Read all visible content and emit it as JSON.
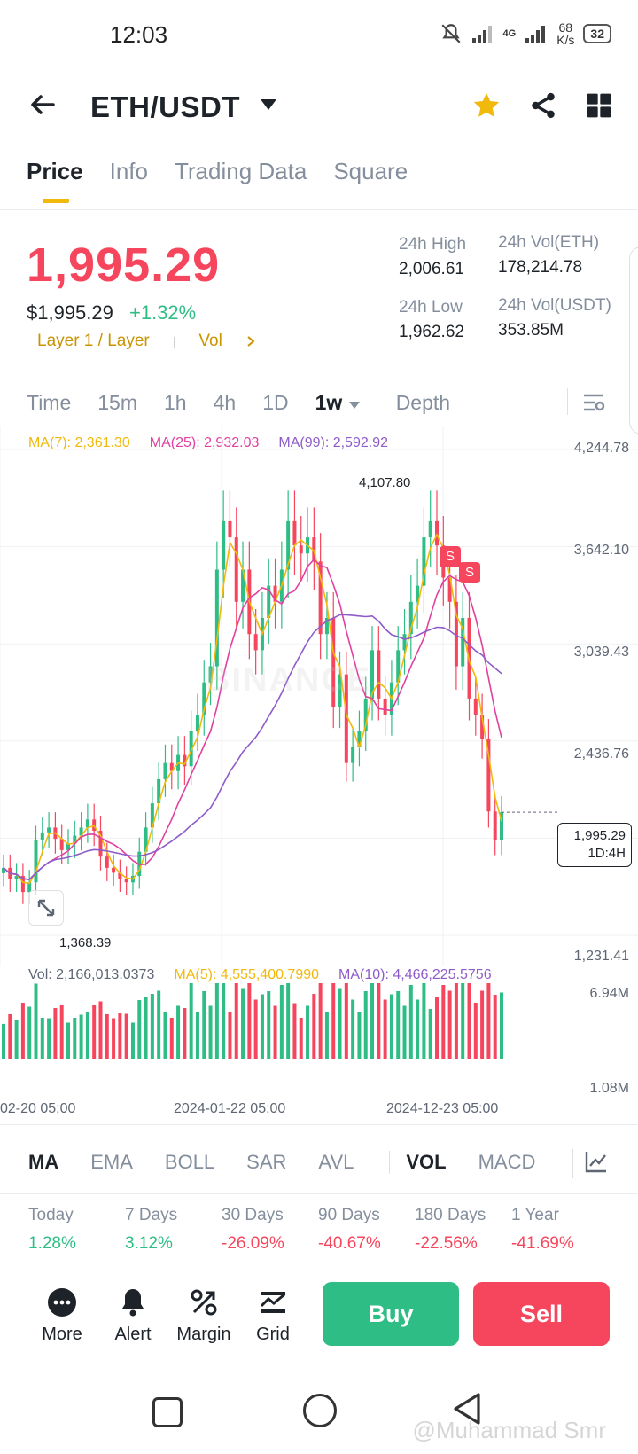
{
  "status": {
    "time": "12:03",
    "net_speed_value": "68",
    "net_speed_unit": "K/s",
    "network": "4G",
    "battery": "32"
  },
  "header": {
    "pair": "ETH/USDT"
  },
  "tabs": [
    "Price",
    "Info",
    "Trading Data",
    "Square"
  ],
  "price": {
    "last": "1,995.29",
    "usd": "$1,995.29",
    "change": "+1.32%",
    "tag": "Layer 1 / Layer",
    "vol_link": "Vol",
    "high_label": "24h High",
    "high": "2,006.61",
    "low_label": "24h Low",
    "low": "1,962.62",
    "vol_eth_label": "24h Vol(ETH)",
    "vol_eth": "178,214.78",
    "vol_usdt_label": "24h Vol(USDT)",
    "vol_usdt": "353.85M"
  },
  "timeframes": [
    "Time",
    "15m",
    "1h",
    "4h",
    "1D",
    "1w",
    "Depth"
  ],
  "chart": {
    "ma7": "MA(7): 2,361.30",
    "ma25": "MA(25): 2,932.03",
    "ma99": "MA(99): 2,592.92",
    "y_ticks": [
      "4,244.78",
      "3,642.10",
      "3,039.43",
      "2,436.76",
      "1,231.41"
    ],
    "high_marker": "4,107.80",
    "low_marker": "1,368.39",
    "current_price": "1,995.29",
    "countdown": "1D:4H",
    "sell_marker": "S",
    "watermark": "BINANCE",
    "vol_label": "Vol: 2,166,013.0373",
    "vol_ma5": "MA(5): 4,555,400.7990",
    "vol_ma10": "MA(10): 4,466,225.5756",
    "vol_ticks": [
      "6.94M",
      "1.08M"
    ],
    "dates": [
      "02-20 05:00",
      "2024-01-22 05:00",
      "2024-12-23 05:00"
    ],
    "colors": {
      "up": "#2ebd85",
      "down": "#f6465d",
      "ma7": "#f0b90b",
      "ma25": "#e040a0",
      "ma99": "#8e5cc8"
    }
  },
  "chart_data": {
    "type": "candlestick",
    "interval": "1w",
    "closes": [
      1650,
      1580,
      1600,
      1500,
      1560,
      1820,
      1870,
      1900,
      1830,
      1760,
      1800,
      1850,
      1900,
      1950,
      1880,
      1720,
      1650,
      1620,
      1580,
      1560,
      1600,
      1750,
      1900,
      2050,
      2200,
      2300,
      2250,
      2350,
      2280,
      2500,
      2600,
      2800,
      2900,
      3500,
      3800,
      3700,
      3300,
      3500,
      3100,
      3000,
      3200,
      3400,
      3300,
      3500,
      3800,
      3650,
      3600,
      3700,
      3550,
      3100,
      3200,
      2650,
      2850,
      2300,
      2400,
      2500,
      2700,
      3000,
      2700,
      2600,
      2800,
      3000,
      3100,
      3300,
      3400,
      3700,
      3800,
      3650,
      3450,
      3300,
      2900,
      3200,
      2700,
      2600,
      2450,
      2000,
      1820,
      1995.29
    ],
    "y_range": [
      1231.41,
      4244.78
    ],
    "high": 4107.8,
    "low": 1368.39
  },
  "indicators": [
    "MA",
    "EMA",
    "BOLL",
    "SAR",
    "AVL",
    "VOL",
    "MACD"
  ],
  "performance": [
    {
      "label": "Today",
      "value": "1.28%"
    },
    {
      "label": "7 Days",
      "value": "3.12%"
    },
    {
      "label": "30 Days",
      "value": "-26.09%"
    },
    {
      "label": "90 Days",
      "value": "-40.67%"
    },
    {
      "label": "180 Days",
      "value": "-22.56%"
    },
    {
      "label": "1 Year",
      "value": "-41.69%"
    }
  ],
  "actions": {
    "more": "More",
    "alert": "Alert",
    "margin": "Margin",
    "grid": "Grid",
    "buy": "Buy",
    "sell": "Sell"
  },
  "watermark": "@Muhammad Smr"
}
